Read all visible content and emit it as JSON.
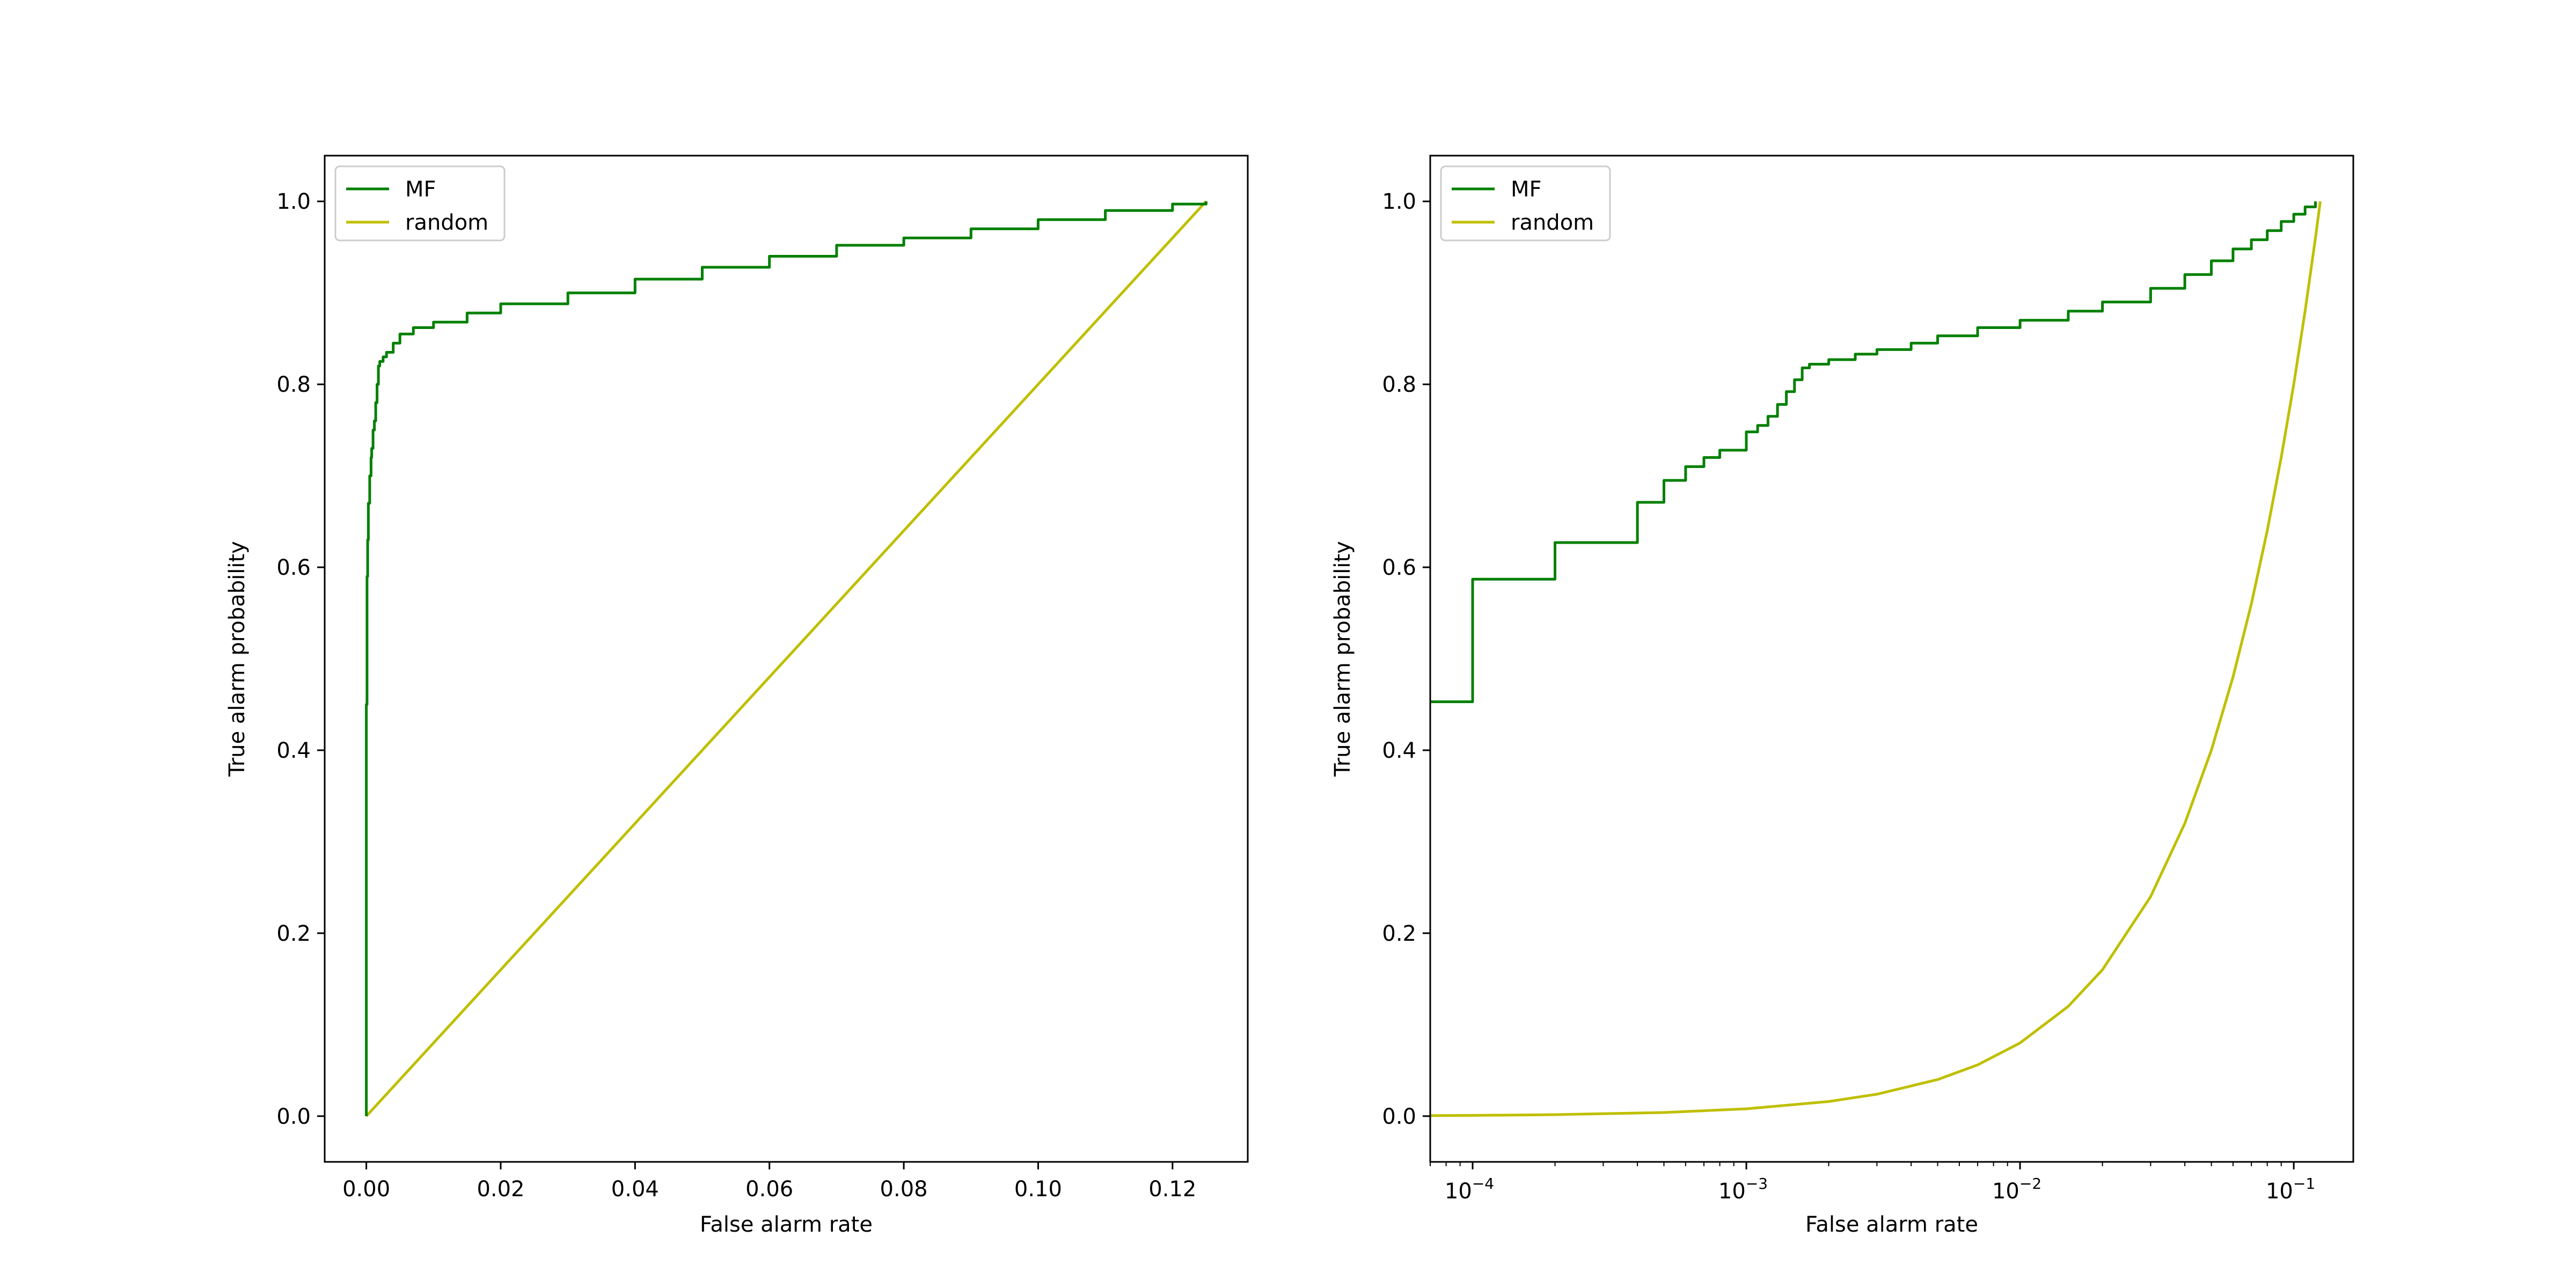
{
  "chart_data": [
    {
      "type": "line",
      "xscale": "linear",
      "xlabel": "False alarm rate",
      "ylabel": "True alarm probability",
      "xlim": [
        -0.0062,
        0.1312
      ],
      "ylim": [
        -0.05,
        1.05
      ],
      "xticks": [
        0.0,
        0.02,
        0.04,
        0.06,
        0.08,
        0.1,
        0.12
      ],
      "xtick_labels": [
        "0.00",
        "0.02",
        "0.04",
        "0.06",
        "0.08",
        "0.10",
        "0.12"
      ],
      "yticks": [
        0.0,
        0.2,
        0.4,
        0.6,
        0.8,
        1.0
      ],
      "ytick_labels": [
        "0.0",
        "0.2",
        "0.4",
        "0.6",
        "0.8",
        "1.0"
      ],
      "legend": {
        "location": "upper-left",
        "entries": [
          "MF",
          "random"
        ]
      },
      "grid": false,
      "series": [
        {
          "name": "MF",
          "color": "#008000",
          "style": "step",
          "x": [
            0.0,
            0.0,
            0.0001,
            0.0002,
            0.0003,
            0.0005,
            0.0007,
            0.0008,
            0.001,
            0.0012,
            0.0014,
            0.0016,
            0.0018,
            0.002,
            0.0025,
            0.003,
            0.004,
            0.005,
            0.007,
            0.01,
            0.015,
            0.02,
            0.03,
            0.04,
            0.05,
            0.06,
            0.07,
            0.08,
            0.09,
            0.1,
            0.11,
            0.12,
            0.125
          ],
          "y": [
            0.0,
            0.45,
            0.59,
            0.63,
            0.67,
            0.7,
            0.72,
            0.73,
            0.75,
            0.76,
            0.78,
            0.8,
            0.82,
            0.825,
            0.83,
            0.835,
            0.845,
            0.855,
            0.862,
            0.868,
            0.878,
            0.888,
            0.9,
            0.915,
            0.928,
            0.94,
            0.952,
            0.96,
            0.97,
            0.98,
            0.99,
            0.997,
            1.0
          ]
        },
        {
          "name": "random",
          "color": "#bfbf00",
          "style": "line",
          "x": [
            0.0,
            0.125
          ],
          "y": [
            0.0,
            1.0
          ]
        }
      ]
    },
    {
      "type": "line",
      "xscale": "log",
      "xlabel": "False alarm rate",
      "ylabel": "True alarm probability",
      "xlim": [
        7e-05,
        0.165
      ],
      "ylim": [
        -0.05,
        1.05
      ],
      "xticks": [
        0.0001,
        0.001,
        0.01,
        0.1
      ],
      "xtick_labels": [
        {
          "base": "10",
          "exp": "−4"
        },
        {
          "base": "10",
          "exp": "−3"
        },
        {
          "base": "10",
          "exp": "−2"
        },
        {
          "base": "10",
          "exp": "−1"
        }
      ],
      "yticks": [
        0.0,
        0.2,
        0.4,
        0.6,
        0.8,
        1.0
      ],
      "ytick_labels": [
        "0.0",
        "0.2",
        "0.4",
        "0.6",
        "0.8",
        "1.0"
      ],
      "legend": {
        "location": "upper-left",
        "entries": [
          "MF",
          "random"
        ]
      },
      "grid": false,
      "series": [
        {
          "name": "MF",
          "color": "#008000",
          "style": "step",
          "x": [
            7e-05,
            0.0001,
            0.0002,
            0.0004,
            0.0005,
            0.0006,
            0.0007,
            0.0008,
            0.001,
            0.0011,
            0.0012,
            0.0013,
            0.0014,
            0.0015,
            0.0016,
            0.0017,
            0.002,
            0.0025,
            0.003,
            0.004,
            0.005,
            0.007,
            0.01,
            0.015,
            0.02,
            0.03,
            0.04,
            0.05,
            0.06,
            0.07,
            0.08,
            0.09,
            0.1,
            0.11,
            0.12
          ],
          "y": [
            0.453,
            0.587,
            0.627,
            0.671,
            0.695,
            0.71,
            0.72,
            0.728,
            0.748,
            0.755,
            0.765,
            0.778,
            0.792,
            0.805,
            0.818,
            0.822,
            0.827,
            0.833,
            0.838,
            0.845,
            0.853,
            0.862,
            0.87,
            0.88,
            0.89,
            0.905,
            0.92,
            0.935,
            0.948,
            0.958,
            0.968,
            0.978,
            0.986,
            0.994,
            1.0
          ]
        },
        {
          "name": "random",
          "color": "#bfbf00",
          "style": "line",
          "function": "y = x / 0.125",
          "x": [
            7e-05,
            0.0001,
            0.0002,
            0.0005,
            0.001,
            0.002,
            0.003,
            0.005,
            0.007,
            0.01,
            0.015,
            0.02,
            0.03,
            0.04,
            0.05,
            0.06,
            0.07,
            0.08,
            0.09,
            0.1,
            0.11,
            0.12,
            0.125
          ],
          "y": [
            0.00056,
            0.0008,
            0.0016,
            0.004,
            0.008,
            0.016,
            0.024,
            0.04,
            0.056,
            0.08,
            0.12,
            0.16,
            0.24,
            0.32,
            0.4,
            0.48,
            0.56,
            0.64,
            0.72,
            0.8,
            0.88,
            0.96,
            1.0
          ]
        }
      ]
    }
  ]
}
